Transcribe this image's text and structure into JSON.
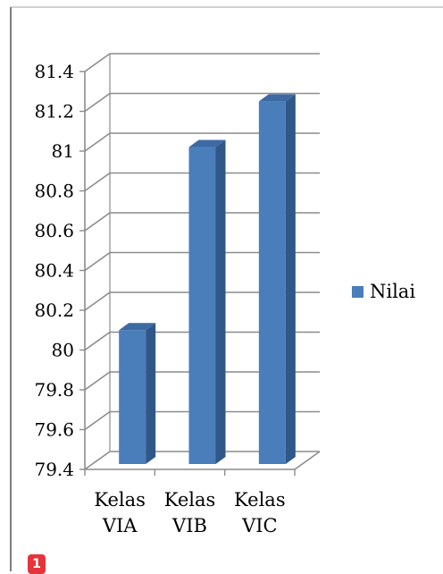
{
  "chart_data": {
    "type": "bar",
    "title": "",
    "xlabel": "",
    "ylabel": "",
    "categories": [
      [
        "Kelas",
        "VIA"
      ],
      [
        "Kelas",
        "VIB"
      ],
      [
        "Kelas",
        "VIC"
      ]
    ],
    "series": [
      {
        "name": "Nilai",
        "values": [
          80.1,
          81.02,
          81.25
        ]
      }
    ],
    "ylim": [
      79.4,
      81.4
    ],
    "yticks": [
      "79.4",
      "79.6",
      "79.8",
      "80",
      "80.2",
      "80.4",
      "80.6",
      "80.8",
      "81",
      "81.2",
      "81.4"
    ],
    "grid": true,
    "legend": "right",
    "three_d": true,
    "colors": {
      "bar_front": "#4a7ebb",
      "bar_side": "#2f5787",
      "bar_top": "#3d6aa3",
      "grid": "#8c8c8c",
      "axis": "#8c8c8c",
      "frame": "#a6a6a6",
      "text": "#000000"
    }
  },
  "badge": {
    "label": "1",
    "color": "#e5343a"
  }
}
